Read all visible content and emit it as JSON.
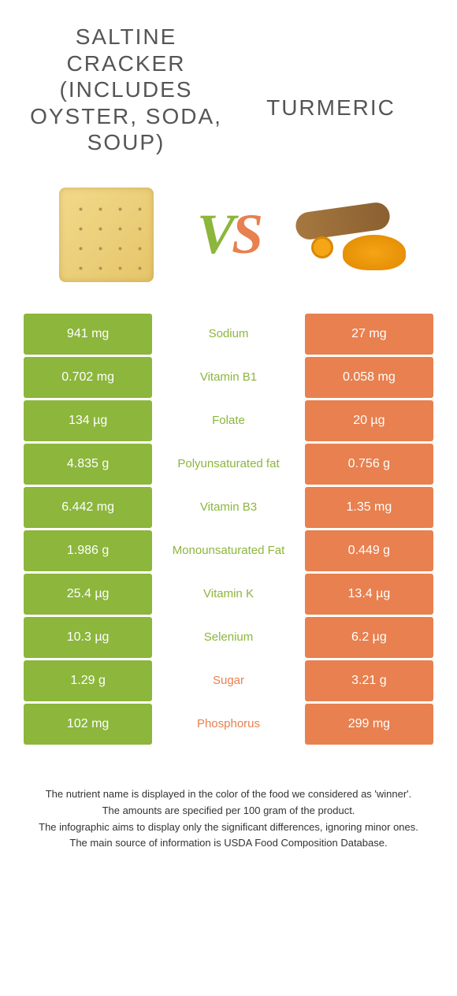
{
  "colors": {
    "left": "#8cb63c",
    "right": "#e8804f",
    "text": "#555555",
    "footer": "#333333",
    "background": "#ffffff"
  },
  "titles": {
    "left": "Saltine cracker (includes oyster, soda, soup)",
    "right": "Turmeric"
  },
  "vs": {
    "v": "V",
    "s": "S"
  },
  "rows": [
    {
      "left": "941 mg",
      "label": "Sodium",
      "right": "27 mg",
      "winner": "left"
    },
    {
      "left": "0.702 mg",
      "label": "Vitamin B1",
      "right": "0.058 mg",
      "winner": "left"
    },
    {
      "left": "134 µg",
      "label": "Folate",
      "right": "20 µg",
      "winner": "left"
    },
    {
      "left": "4.835 g",
      "label": "Polyunsaturated fat",
      "right": "0.756 g",
      "winner": "left"
    },
    {
      "left": "6.442 mg",
      "label": "Vitamin B3",
      "right": "1.35 mg",
      "winner": "left"
    },
    {
      "left": "1.986 g",
      "label": "Monounsaturated Fat",
      "right": "0.449 g",
      "winner": "left"
    },
    {
      "left": "25.4 µg",
      "label": "Vitamin K",
      "right": "13.4 µg",
      "winner": "left"
    },
    {
      "left": "10.3 µg",
      "label": "Selenium",
      "right": "6.2 µg",
      "winner": "left"
    },
    {
      "left": "1.29 g",
      "label": "Sugar",
      "right": "3.21 g",
      "winner": "right"
    },
    {
      "left": "102 mg",
      "label": "Phosphorus",
      "right": "299 mg",
      "winner": "right"
    }
  ],
  "footer": {
    "line1": "The nutrient name is displayed in the color of the food we considered as 'winner'.",
    "line2": "The amounts are specified per 100 gram of the product.",
    "line3": "The infographic aims to display only the significant differences, ignoring minor ones.",
    "line4": "The main source of information is USDA Food Composition Database."
  }
}
